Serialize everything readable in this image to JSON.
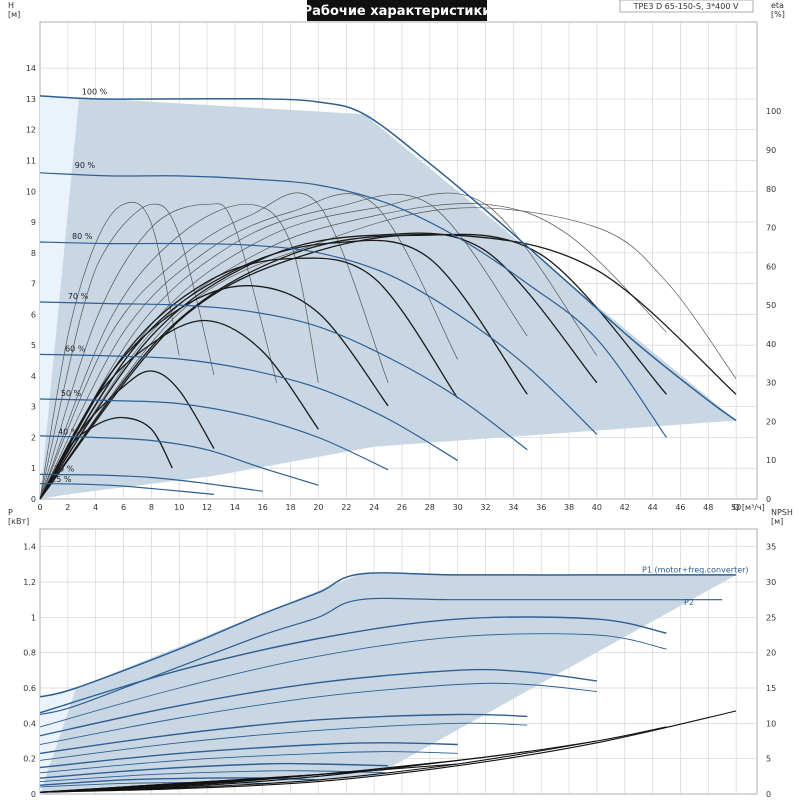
{
  "title": "Рабочие характеристики",
  "model": "TPE3 D 65-150-S, 3*400 V",
  "colors": {
    "region": "#c9d7e4",
    "region_light": "#eaf3fc",
    "head_curve": "#2d5f93",
    "eff_curve": "#1a1a1a",
    "eff_curve_thin": "#555555",
    "power_curve": "#2d5f93",
    "npsh_curve": "#111111",
    "grid": "#d4d4d4",
    "axis": "#999999"
  },
  "chart_data": [
    {
      "type": "line",
      "name": "head-and-efficiency",
      "xlabel": "Q [м³/ч]",
      "ylabel_left": "H\n[м]",
      "ylabel_right": "eta\n[%]",
      "xlim": [
        0,
        51.5
      ],
      "ylim": [
        0,
        15.5
      ],
      "ylim_right": [
        0,
        123
      ],
      "x_ticks": [
        0,
        2,
        4,
        6,
        8,
        10,
        12,
        14,
        16,
        18,
        20,
        22,
        24,
        26,
        28,
        30,
        32,
        34,
        36,
        38,
        40,
        42,
        44,
        46,
        48,
        50
      ],
      "y_ticks": [
        0,
        1,
        2,
        3,
        4,
        5,
        6,
        7,
        8,
        9,
        10,
        11,
        12,
        13,
        14
      ],
      "y_ticks_right": [
        0,
        10,
        20,
        30,
        40,
        50,
        60,
        70,
        80,
        90,
        100
      ],
      "operating_region": {
        "x": [
          0,
          0,
          2.8,
          23.3,
          50,
          24,
          12.5,
          2
        ],
        "y": [
          0,
          13.1,
          13.05,
          12.5,
          2.55,
          1.7,
          0.75,
          0.15
        ]
      },
      "head_series": [
        {
          "label": "100 %",
          "label_x": 3,
          "label_y": 13.15,
          "x": [
            0,
            4,
            10,
            16,
            20,
            23.3,
            28,
            33,
            38,
            43,
            48,
            50
          ],
          "y": [
            13.1,
            13.0,
            13.0,
            13.0,
            12.9,
            12.5,
            10.9,
            9.0,
            7.0,
            5.0,
            3.2,
            2.55
          ]
        },
        {
          "label": "90 %",
          "label_x": 2.5,
          "label_y": 10.75,
          "x": [
            0,
            5,
            10,
            15,
            20,
            25,
            30,
            35,
            40,
            45
          ],
          "y": [
            10.6,
            10.5,
            10.5,
            10.4,
            10.2,
            9.6,
            8.5,
            7.0,
            5.2,
            2.0
          ]
        },
        {
          "label": "80 %",
          "label_x": 2.3,
          "label_y": 8.45,
          "x": [
            0,
            5,
            10,
            15,
            20,
            25,
            30,
            35,
            40
          ],
          "y": [
            8.35,
            8.3,
            8.3,
            8.25,
            8.0,
            7.3,
            6.0,
            4.3,
            2.1
          ]
        },
        {
          "label": "70 %",
          "label_x": 2.0,
          "label_y": 6.5,
          "x": [
            0,
            5,
            10,
            15,
            20,
            25,
            30,
            35
          ],
          "y": [
            6.4,
            6.35,
            6.3,
            6.1,
            5.6,
            4.6,
            3.3,
            1.6
          ]
        },
        {
          "label": "60 %",
          "label_x": 1.8,
          "label_y": 4.8,
          "x": [
            0,
            5,
            10,
            15,
            20,
            25,
            30
          ],
          "y": [
            4.7,
            4.65,
            4.55,
            4.2,
            3.6,
            2.6,
            1.25
          ]
        },
        {
          "label": "50 %",
          "label_x": 1.5,
          "label_y": 3.35,
          "x": [
            0,
            5,
            10,
            15,
            20,
            25
          ],
          "y": [
            3.25,
            3.2,
            3.1,
            2.7,
            2.0,
            0.95
          ]
        },
        {
          "label": "40 %",
          "label_x": 1.3,
          "label_y": 2.1,
          "x": [
            0,
            4,
            8,
            12,
            16,
            20
          ],
          "y": [
            2.05,
            2.0,
            1.9,
            1.6,
            1.0,
            0.45
          ]
        },
        {
          "label": "30 %",
          "label_x": 1.0,
          "label_y": 0.9,
          "x": [
            0,
            4,
            8,
            12,
            16
          ],
          "y": [
            0.8,
            0.78,
            0.7,
            0.5,
            0.25
          ]
        },
        {
          "label": "25 %",
          "label_x": 0.8,
          "label_y": 0.55,
          "x": [
            0,
            3,
            6,
            9,
            12.5
          ],
          "y": [
            0.5,
            0.48,
            0.42,
            0.3,
            0.15
          ]
        }
      ],
      "eff_series": [
        {
          "x": [
            0,
            2,
            4,
            6,
            8,
            10
          ],
          "y": [
            0,
            42,
            66,
            76,
            71,
            37
          ],
          "weight": "thin"
        },
        {
          "x": [
            0,
            3,
            5,
            8,
            10,
            12.5
          ],
          "y": [
            0,
            48,
            66,
            76,
            68,
            32
          ],
          "weight": "thin"
        },
        {
          "x": [
            0,
            4,
            8,
            12,
            14,
            17
          ],
          "y": [
            0,
            46,
            70,
            76,
            70,
            30
          ],
          "weight": "thin"
        },
        {
          "x": [
            0,
            5,
            10,
            15,
            18,
            20
          ],
          "y": [
            0,
            46,
            68,
            76,
            66,
            30
          ],
          "weight": "thin"
        },
        {
          "x": [
            0,
            5,
            10,
            15,
            20,
            25
          ],
          "y": [
            0,
            42,
            62,
            73,
            76,
            30
          ],
          "weight": "thin"
        },
        {
          "x": [
            0,
            6,
            12,
            18,
            24,
            30
          ],
          "y": [
            0,
            43,
            64,
            74,
            76,
            36
          ],
          "weight": "thin"
        },
        {
          "x": [
            0,
            7,
            14,
            21,
            28,
            35
          ],
          "y": [
            0,
            44,
            66,
            75,
            76,
            42
          ],
          "weight": "thin"
        },
        {
          "x": [
            0,
            8,
            16,
            24,
            32,
            40
          ],
          "y": [
            0,
            45,
            67,
            75,
            76,
            37
          ],
          "weight": "thin"
        },
        {
          "x": [
            0,
            8,
            16,
            24,
            32,
            38,
            45
          ],
          "y": [
            0,
            43,
            64,
            73,
            76,
            68,
            43
          ],
          "weight": "thin"
        },
        {
          "x": [
            0,
            10,
            20,
            30,
            40,
            45,
            50
          ],
          "y": [
            0,
            48,
            66,
            75,
            70,
            56,
            31
          ],
          "weight": "thin"
        },
        {
          "x": [
            0,
            2,
            4,
            6,
            8,
            9.5
          ],
          "y": [
            0,
            13,
            19,
            21,
            18,
            8
          ],
          "weight": "bold"
        },
        {
          "x": [
            0,
            3,
            6,
            8,
            10,
            12.5
          ],
          "y": [
            0,
            18,
            29,
            33,
            28,
            13
          ],
          "weight": "bold"
        },
        {
          "x": [
            0,
            4,
            8,
            12,
            16,
            20
          ],
          "y": [
            0,
            26,
            40,
            46,
            38,
            18
          ],
          "weight": "bold"
        },
        {
          "x": [
            0,
            5,
            10,
            15,
            20,
            25
          ],
          "y": [
            0,
            32,
            49,
            55,
            48,
            24
          ],
          "weight": "bold"
        },
        {
          "x": [
            0,
            6,
            12,
            18,
            24,
            30
          ],
          "y": [
            0,
            37,
            56,
            62,
            57,
            26
          ],
          "weight": "bold"
        },
        {
          "x": [
            0,
            7,
            14,
            21,
            28,
            35
          ],
          "y": [
            0,
            40,
            59,
            66,
            62,
            27
          ],
          "weight": "bold"
        },
        {
          "x": [
            0,
            8,
            16,
            24,
            32,
            40
          ],
          "y": [
            0,
            42,
            62,
            68,
            64,
            30
          ],
          "weight": "bold"
        },
        {
          "x": [
            0,
            9,
            18,
            27,
            36,
            45
          ],
          "y": [
            0,
            43,
            63,
            68,
            63,
            27
          ],
          "weight": "bold"
        },
        {
          "x": [
            0,
            10,
            20,
            30,
            40,
            50
          ],
          "y": [
            0,
            46,
            64,
            68,
            59,
            27
          ],
          "weight": "bold"
        }
      ]
    },
    {
      "type": "line",
      "name": "power-and-npsh",
      "ylabel_left": "P\n[кВт]",
      "ylabel_right": "NPSH\n[м]",
      "xlim": [
        0,
        51.5
      ],
      "ylim": [
        0,
        1.5
      ],
      "ylim_right": [
        0,
        37.5
      ],
      "y_ticks": [
        0,
        0.2,
        0.4,
        0.6,
        0.8,
        1.0,
        1.2,
        1.4
      ],
      "y_ticks_right": [
        0,
        5,
        10,
        15,
        20,
        25,
        30,
        35
      ],
      "operating_region": {
        "x": [
          0,
          0,
          2.6,
          23,
          50,
          24,
          12.5,
          2
        ],
        "y": [
          0,
          0.55,
          0.6,
          1.245,
          1.24,
          0.1,
          0.04,
          0.01
        ]
      },
      "series_labels": {
        "p1": "P1 (motor+freq.converter)",
        "p2": "P2"
      },
      "p1_top": {
        "x": [
          0,
          2.6,
          10,
          16,
          20,
          23,
          30,
          40,
          50
        ],
        "y": [
          0.55,
          0.6,
          0.82,
          1.02,
          1.14,
          1.245,
          1.24,
          1.24,
          1.24
        ]
      },
      "p2_top": {
        "x": [
          0,
          2.6,
          10,
          16,
          20,
          23,
          30,
          40,
          49
        ],
        "y": [
          0.45,
          0.5,
          0.72,
          0.9,
          1.0,
          1.1,
          1.1,
          1.1,
          1.1
        ]
      },
      "power_series": [
        {
          "x": [
            0,
            10,
            20,
            30,
            40,
            45
          ],
          "y": [
            0.46,
            0.7,
            0.88,
            0.99,
            0.99,
            0.91
          ]
        },
        {
          "x": [
            0,
            10,
            20,
            30,
            40,
            45
          ],
          "y": [
            0.38,
            0.6,
            0.78,
            0.89,
            0.9,
            0.82
          ]
        },
        {
          "x": [
            0,
            10,
            20,
            30,
            35,
            40
          ],
          "y": [
            0.33,
            0.5,
            0.63,
            0.7,
            0.69,
            0.64
          ]
        },
        {
          "x": [
            0,
            10,
            20,
            30,
            35,
            40
          ],
          "y": [
            0.28,
            0.43,
            0.55,
            0.62,
            0.62,
            0.58
          ]
        },
        {
          "x": [
            0,
            10,
            20,
            30,
            35
          ],
          "y": [
            0.23,
            0.34,
            0.42,
            0.45,
            0.44
          ]
        },
        {
          "x": [
            0,
            10,
            20,
            30,
            35
          ],
          "y": [
            0.19,
            0.29,
            0.36,
            0.4,
            0.39
          ]
        },
        {
          "x": [
            0,
            10,
            20,
            25,
            30
          ],
          "y": [
            0.15,
            0.23,
            0.28,
            0.29,
            0.28
          ]
        },
        {
          "x": [
            0,
            10,
            20,
            25,
            30
          ],
          "y": [
            0.12,
            0.19,
            0.23,
            0.24,
            0.23
          ]
        },
        {
          "x": [
            0,
            8,
            16,
            20,
            25
          ],
          "y": [
            0.09,
            0.14,
            0.17,
            0.17,
            0.16
          ]
        },
        {
          "x": [
            0,
            8,
            16,
            20,
            25
          ],
          "y": [
            0.07,
            0.11,
            0.13,
            0.13,
            0.12
          ]
        },
        {
          "x": [
            0,
            6,
            12,
            16,
            20
          ],
          "y": [
            0.05,
            0.08,
            0.09,
            0.09,
            0.08
          ]
        },
        {
          "x": [
            0,
            6,
            12,
            16
          ],
          "y": [
            0.04,
            0.06,
            0.065,
            0.06
          ]
        }
      ],
      "npsh_series": [
        {
          "x": [
            0,
            10,
            20,
            30,
            40,
            50
          ],
          "y": [
            0.01,
            0.03,
            0.07,
            0.16,
            0.29,
            0.47
          ]
        },
        {
          "x": [
            0,
            10,
            20,
            30,
            40,
            45
          ],
          "y": [
            0.01,
            0.035,
            0.08,
            0.17,
            0.3,
            0.38
          ]
        },
        {
          "x": [
            0,
            10,
            20,
            30,
            35,
            40
          ],
          "y": [
            0.01,
            0.04,
            0.1,
            0.19,
            0.24,
            0.3
          ]
        },
        {
          "x": [
            0,
            10,
            20,
            30,
            35
          ],
          "y": [
            0.01,
            0.045,
            0.11,
            0.19,
            0.24
          ]
        },
        {
          "x": [
            0,
            10,
            20,
            25,
            30
          ],
          "y": [
            0.01,
            0.05,
            0.11,
            0.14,
            0.17
          ]
        },
        {
          "x": [
            0,
            10,
            20,
            25
          ],
          "y": [
            0.01,
            0.055,
            0.11,
            0.14
          ]
        },
        {
          "x": [
            0,
            8,
            16,
            20
          ],
          "y": [
            0.01,
            0.05,
            0.09,
            0.11
          ]
        },
        {
          "x": [
            0,
            6,
            12,
            16
          ],
          "y": [
            0.01,
            0.04,
            0.07,
            0.085
          ]
        }
      ]
    }
  ]
}
